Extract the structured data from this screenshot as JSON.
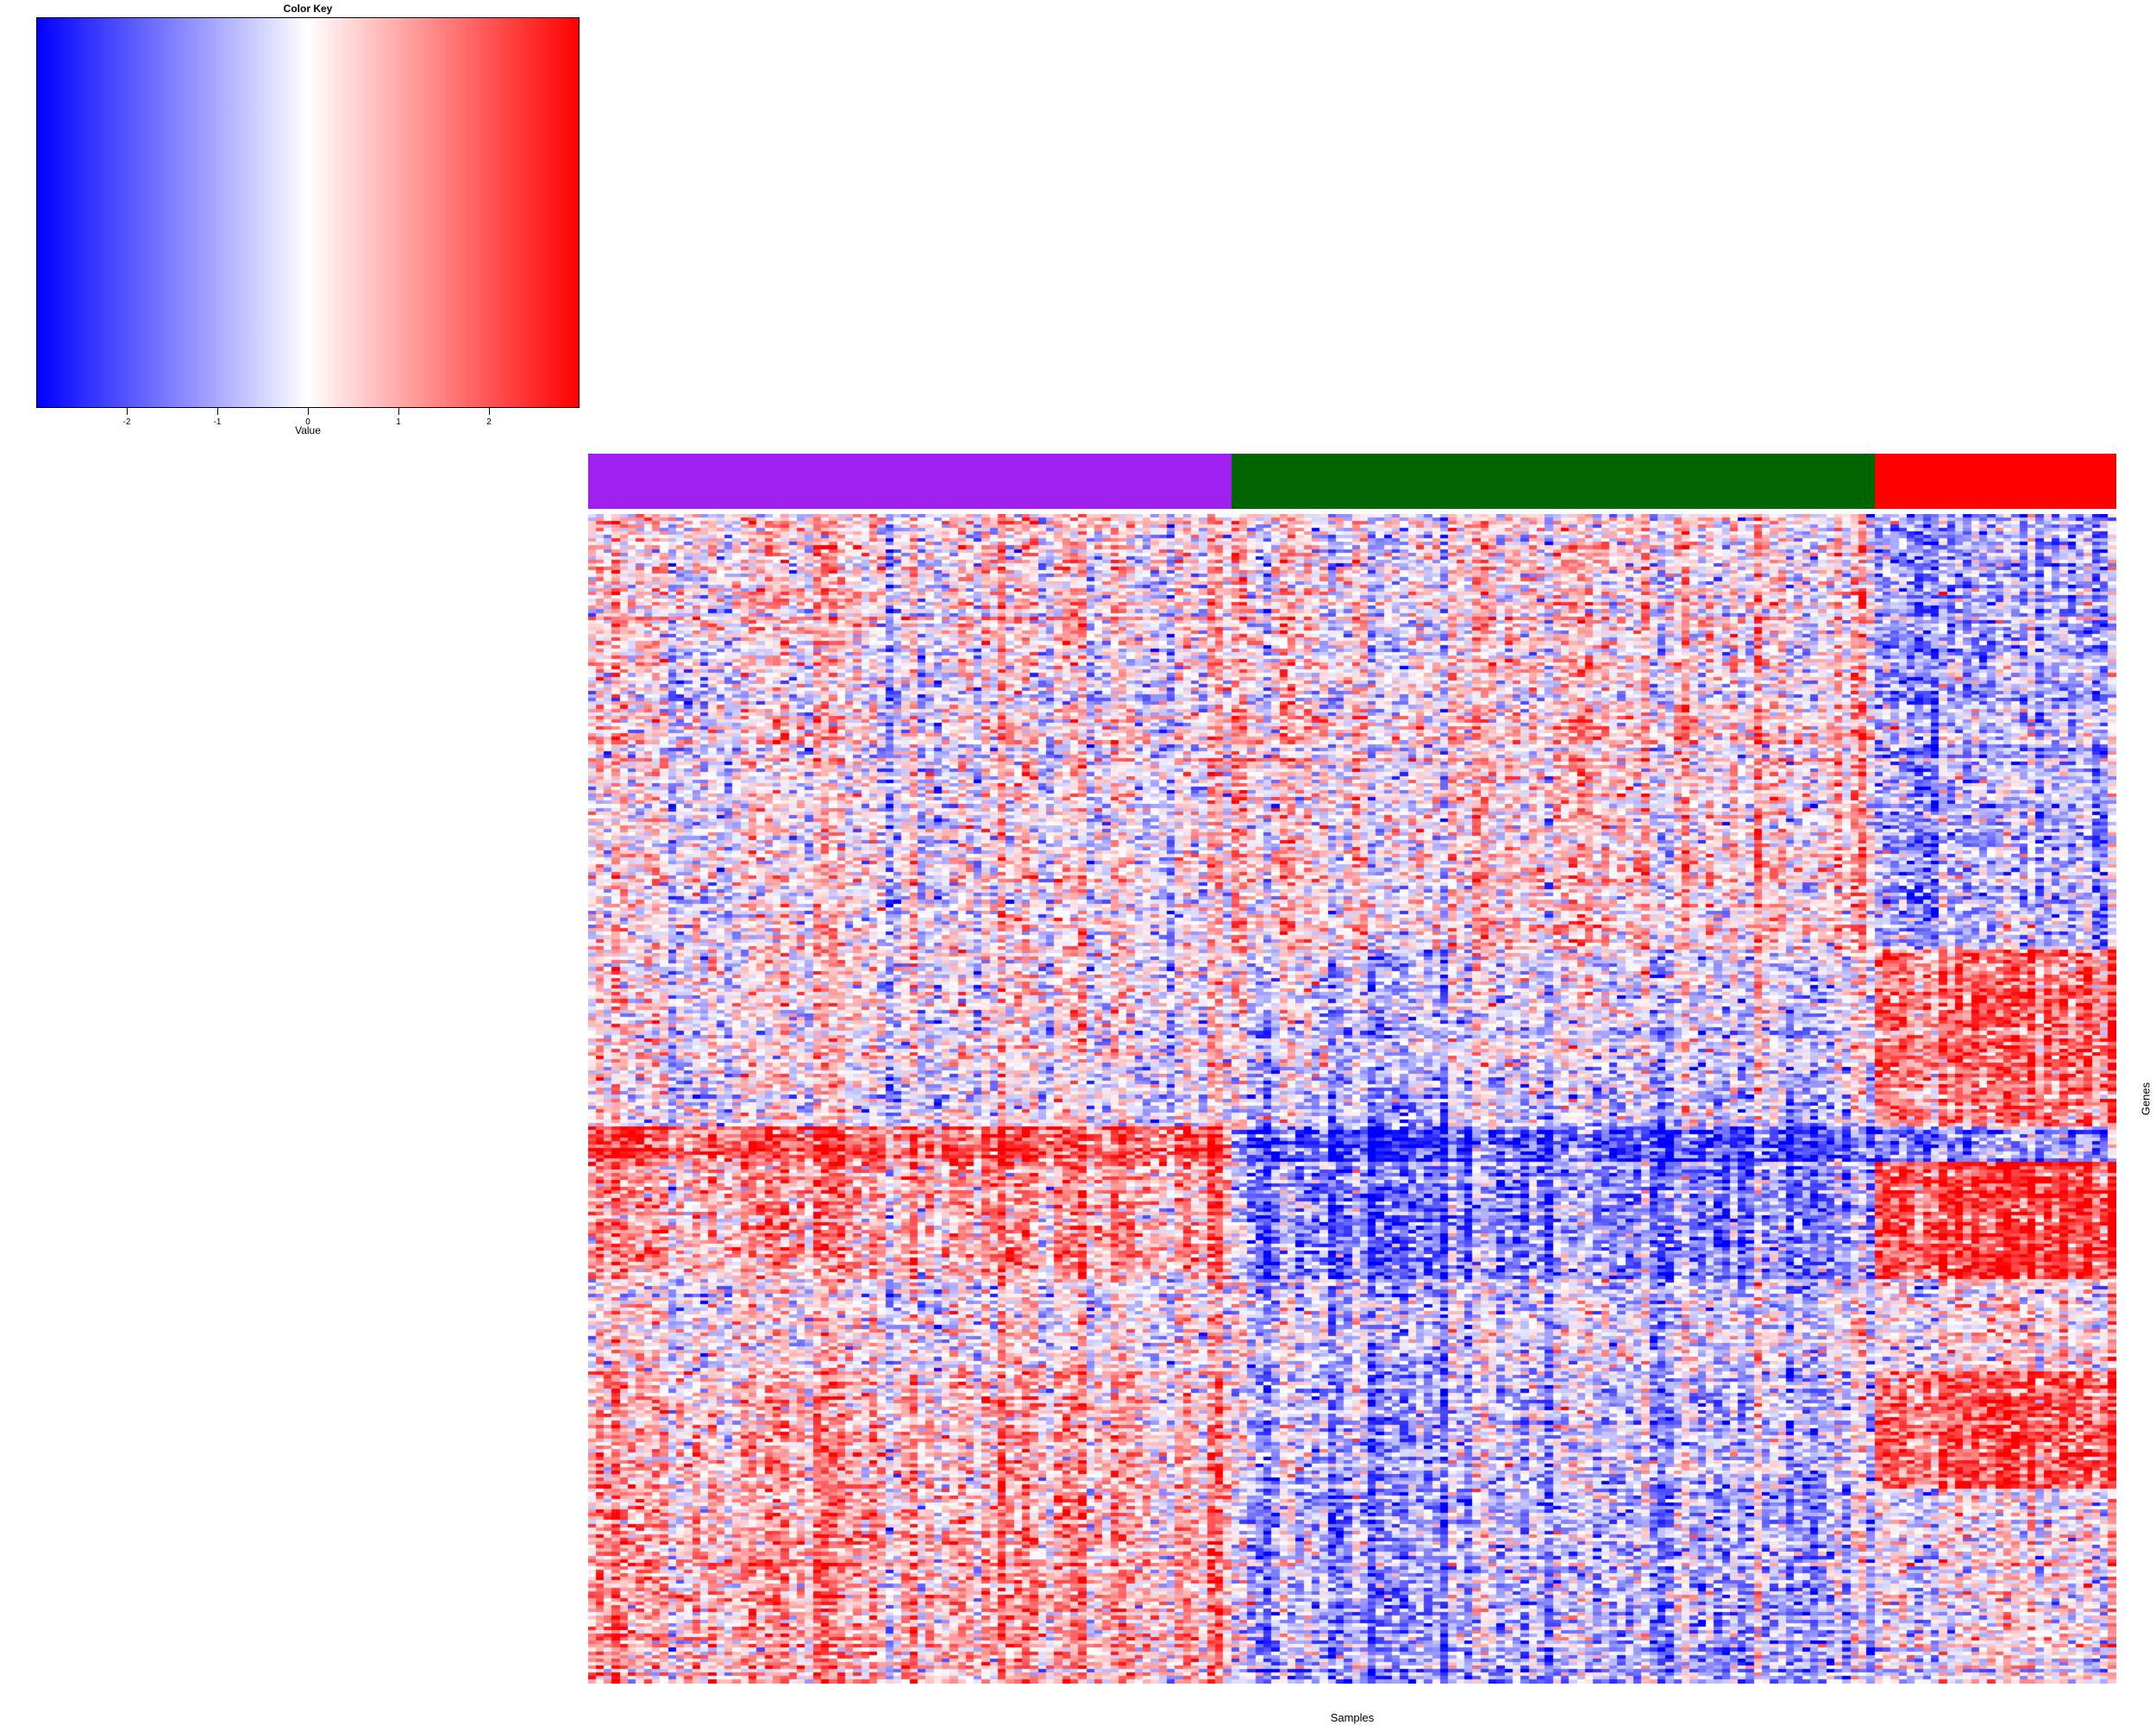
{
  "chart_data": {
    "type": "heatmap",
    "title": "",
    "xlabel": "Samples",
    "ylabel": "Genes",
    "color_key": {
      "title": "Color Key",
      "xlabel": "Value",
      "range": [
        -3,
        3
      ],
      "ticks": [
        "-2",
        "-1",
        "0",
        "1",
        "2"
      ],
      "tick_values": [
        -2,
        -1,
        0,
        1,
        2
      ],
      "low_color": "#0000ff",
      "mid_color": "#ffffff",
      "high_color": "#ff0000"
    },
    "n_samples": 190,
    "n_genes": 330,
    "sample_groups": [
      {
        "color": "#a020f0",
        "count": 80
      },
      {
        "color": "#006400",
        "count": 80
      },
      {
        "color": "#ff0000",
        "count": 30
      }
    ],
    "gene_blocks": [
      {
        "fraction": 0.12,
        "means": [
          0.3,
          0.1,
          -1.2
        ]
      },
      {
        "fraction": 0.25,
        "means": [
          0.1,
          0.3,
          -1.0
        ]
      },
      {
        "fraction": 0.15,
        "means": [
          0.1,
          -0.5,
          1.5
        ]
      },
      {
        "fraction": 0.03,
        "means": [
          2.0,
          -2.2,
          -1.5
        ]
      },
      {
        "fraction": 0.1,
        "means": [
          1.0,
          -1.5,
          2.0
        ]
      },
      {
        "fraction": 0.08,
        "means": [
          0.2,
          -0.4,
          0.2
        ]
      },
      {
        "fraction": 0.1,
        "means": [
          0.8,
          -0.8,
          1.8
        ]
      },
      {
        "fraction": 0.17,
        "means": [
          0.9,
          -1.0,
          -0.2
        ]
      }
    ]
  }
}
